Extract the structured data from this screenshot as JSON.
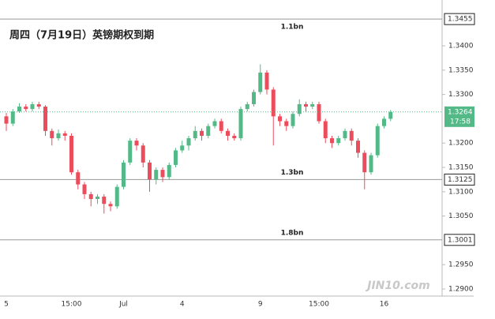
{
  "chart_data": {
    "type": "candlestick",
    "title": "周四（7月19日）英镑期权到期",
    "watermark": "JIN10.com",
    "up_color": "#53b987",
    "down_color": "#eb4d5c",
    "categories": [
      "5",
      null,
      null,
      null,
      null,
      null,
      null,
      null,
      null,
      null,
      "15:00",
      null,
      null,
      null,
      null,
      null,
      null,
      null,
      "Jul",
      null,
      null,
      null,
      null,
      null,
      null,
      null,
      null,
      "4",
      null,
      null,
      null,
      null,
      null,
      null,
      null,
      null,
      null,
      null,
      null,
      "9",
      null,
      null,
      null,
      null,
      null,
      null,
      null,
      null,
      "15:00",
      null,
      null,
      null,
      null,
      null,
      null,
      null,
      null,
      null,
      "16",
      null
    ],
    "open": [
      1.3255,
      1.324,
      1.3265,
      1.3275,
      1.327,
      1.328,
      1.3275,
      1.3225,
      1.321,
      1.322,
      1.3215,
      1.314,
      1.3115,
      1.3095,
      1.3085,
      1.309,
      1.3075,
      1.307,
      1.311,
      1.316,
      1.3205,
      1.3195,
      1.316,
      1.3125,
      1.3145,
      1.313,
      1.3155,
      1.3185,
      1.3195,
      1.321,
      1.3225,
      1.3215,
      1.3235,
      1.3245,
      1.3225,
      1.3215,
      1.321,
      1.327,
      1.328,
      1.3305,
      1.3345,
      1.331,
      1.3255,
      1.3245,
      1.3235,
      1.326,
      1.328,
      1.3275,
      1.328,
      1.3245,
      1.321,
      1.32,
      1.321,
      1.3225,
      1.3205,
      1.318,
      1.314,
      1.3175,
      1.3235,
      1.325
    ],
    "high": [
      1.3262,
      1.327,
      1.3282,
      1.328,
      1.3285,
      1.3285,
      1.3278,
      1.323,
      1.3228,
      1.3225,
      1.322,
      1.3145,
      1.312,
      1.31,
      1.3095,
      1.3095,
      1.308,
      1.3115,
      1.3165,
      1.321,
      1.321,
      1.32,
      1.3165,
      1.315,
      1.315,
      1.316,
      1.319,
      1.3205,
      1.3215,
      1.3235,
      1.323,
      1.324,
      1.325,
      1.325,
      1.323,
      1.322,
      1.3275,
      1.3285,
      1.331,
      1.3362,
      1.335,
      1.3315,
      1.326,
      1.325,
      1.3265,
      1.329,
      1.3285,
      1.3285,
      1.3285,
      1.325,
      1.3215,
      1.3215,
      1.323,
      1.323,
      1.321,
      1.3185,
      1.318,
      1.324,
      1.3255,
      1.3268
    ],
    "low": [
      1.3225,
      1.3235,
      1.3262,
      1.3265,
      1.3265,
      1.327,
      1.3215,
      1.3195,
      1.3205,
      1.3205,
      1.3135,
      1.3105,
      1.3085,
      1.307,
      1.3075,
      1.3055,
      1.306,
      1.3065,
      1.3105,
      1.3155,
      1.3185,
      1.315,
      1.31,
      1.3115,
      1.312,
      1.3125,
      1.315,
      1.318,
      1.3185,
      1.3205,
      1.3205,
      1.321,
      1.323,
      1.322,
      1.3205,
      1.3205,
      1.3205,
      1.3265,
      1.3275,
      1.33,
      1.33,
      1.3195,
      1.3235,
      1.3225,
      1.323,
      1.3255,
      1.3265,
      1.327,
      1.324,
      1.32,
      1.319,
      1.3195,
      1.3205,
      1.3195,
      1.317,
      1.3105,
      1.3135,
      1.317,
      1.323,
      1.3245
    ],
    "close": [
      1.324,
      1.3265,
      1.3275,
      1.327,
      1.328,
      1.3275,
      1.3225,
      1.321,
      1.322,
      1.3215,
      1.314,
      1.3115,
      1.3095,
      1.3085,
      1.309,
      1.3075,
      1.307,
      1.311,
      1.316,
      1.3205,
      1.3195,
      1.316,
      1.3125,
      1.3145,
      1.313,
      1.3155,
      1.3185,
      1.3195,
      1.321,
      1.3225,
      1.3215,
      1.3235,
      1.3245,
      1.3225,
      1.3215,
      1.321,
      1.327,
      1.328,
      1.3305,
      1.3345,
      1.331,
      1.3255,
      1.3245,
      1.3235,
      1.326,
      1.328,
      1.3275,
      1.328,
      1.3245,
      1.321,
      1.32,
      1.321,
      1.3225,
      1.3205,
      1.318,
      1.314,
      1.3175,
      1.3235,
      1.325,
      1.3264
    ],
    "ylim": [
      1.28854,
      1.34942
    ],
    "yticks": [
      {
        "value": 1.29,
        "label": "1.2900"
      },
      {
        "value": 1.295,
        "label": "1.2950"
      },
      {
        "value": 1.305,
        "label": "1.3050"
      },
      {
        "value": 1.31,
        "label": "1.3100"
      },
      {
        "value": 1.315,
        "label": "1.3150"
      },
      {
        "value": 1.32,
        "label": "1.3200"
      },
      {
        "value": 1.33,
        "label": "1.3300"
      },
      {
        "value": 1.335,
        "label": "1.3350"
      },
      {
        "value": 1.34,
        "label": "1.3400"
      }
    ],
    "levels": [
      {
        "value": 1.3455,
        "note": "1.1bn"
      },
      {
        "value": 1.3125,
        "note": "1.3bn"
      },
      {
        "value": 1.3001,
        "note": "1.8bn"
      }
    ],
    "last": {
      "value": 1.3264,
      "countdown": "17:58"
    }
  }
}
